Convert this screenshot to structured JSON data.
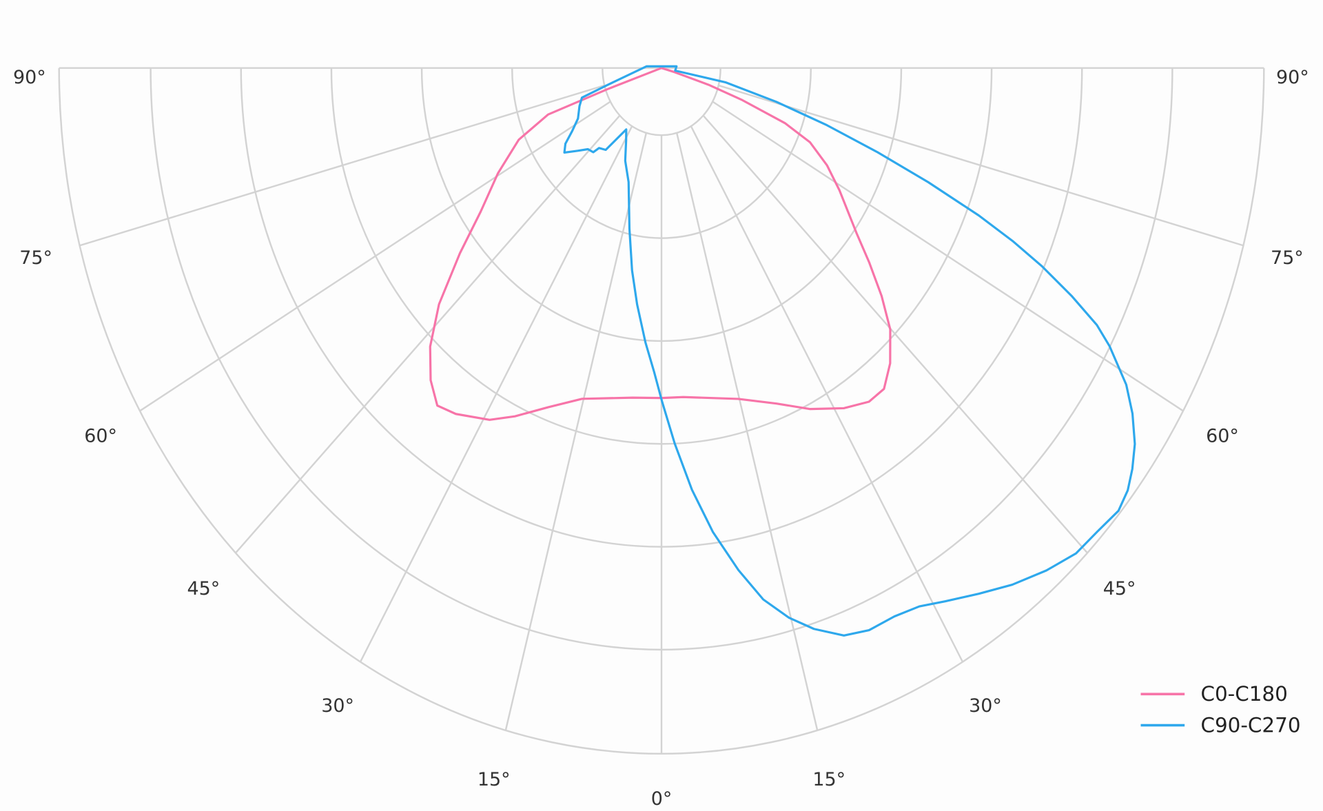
{
  "chart_data": {
    "type": "polar",
    "title": "",
    "angle_unit": "degrees",
    "angle_zero": "down",
    "angle_range": [
      -90,
      90
    ],
    "r_unit": "fraction of outer grid circle",
    "rlim": [
      0,
      1
    ],
    "radial_gridlines": [
      0.098,
      0.248,
      0.398,
      0.548,
      0.698,
      0.848,
      1.0
    ],
    "angular_gridlines": [
      -90,
      -75,
      -60,
      -45,
      -30,
      -15,
      0,
      15,
      30,
      45,
      60,
      75,
      90
    ],
    "angle_tick_labels": [
      {
        "angle": -90,
        "label": "90°"
      },
      {
        "angle": -75,
        "label": "75°"
      },
      {
        "angle": -60,
        "label": "60°"
      },
      {
        "angle": -45,
        "label": "45°"
      },
      {
        "angle": -30,
        "label": "30°"
      },
      {
        "angle": -15,
        "label": "15°"
      },
      {
        "angle": 0,
        "label": "0°"
      },
      {
        "angle": 15,
        "label": "15°"
      },
      {
        "angle": 30,
        "label": "30°"
      },
      {
        "angle": 45,
        "label": "45°"
      },
      {
        "angle": 60,
        "label": "60°"
      },
      {
        "angle": 75,
        "label": "75°"
      },
      {
        "angle": 90,
        "label": "90°"
      }
    ],
    "grid": true,
    "legend_position": "bottom-right",
    "series": [
      {
        "name": "C0-C180",
        "color": "#f774a8",
        "points": [
          [
            -90,
            0
          ],
          [
            -71,
            0.095
          ],
          [
            -70.2,
            0.2
          ],
          [
            -66.2,
            0.259
          ],
          [
            -60.5,
            0.312
          ],
          [
            -55.1,
            0.366
          ],
          [
            -51.1,
            0.43
          ],
          [
            -47,
            0.505
          ],
          [
            -43.4,
            0.559
          ],
          [
            -40.1,
            0.595
          ],
          [
            -37.1,
            0.617
          ],
          [
            -34.1,
            0.609
          ],
          [
            -29.1,
            0.587
          ],
          [
            -25.6,
            0.563
          ],
          [
            -20.8,
            0.529
          ],
          [
            -15.3,
            0.5
          ],
          [
            -5.7,
            0.483
          ],
          [
            0,
            0.481
          ],
          [
            4.3,
            0.481
          ],
          [
            14.8,
            0.499
          ],
          [
            21.3,
            0.525
          ],
          [
            26.4,
            0.555
          ],
          [
            31.4,
            0.581
          ],
          [
            35.3,
            0.596
          ],
          [
            38.3,
            0.596
          ],
          [
            41.4,
            0.574
          ],
          [
            44.9,
            0.538
          ],
          [
            47.7,
            0.494
          ],
          [
            50.6,
            0.446
          ],
          [
            53.4,
            0.403
          ],
          [
            58.9,
            0.345
          ],
          [
            62.7,
            0.309
          ],
          [
            66.3,
            0.269
          ],
          [
            68.6,
            0.22
          ],
          [
            70.8,
            0.142
          ],
          [
            72.6,
            0.082
          ],
          [
            74.5,
            0.023
          ],
          [
            90,
            0
          ]
        ]
      },
      {
        "name": "C90-C270",
        "color": "#2ea8ec",
        "points": [
          [
            -95.7,
            0.025
          ],
          [
            -74.6,
            0.093
          ],
          [
            -71.9,
            0.139
          ],
          [
            -67.8,
            0.147
          ],
          [
            -62,
            0.157
          ],
          [
            -58.1,
            0.175
          ],
          [
            -55.3,
            0.194
          ],
          [
            -52.6,
            0.203
          ],
          [
            -49,
            0.184
          ],
          [
            -45.9,
            0.17
          ],
          [
            -42.7,
            0.167
          ],
          [
            -41.6,
            0.156
          ],
          [
            -37.8,
            0.151
          ],
          [
            -35.9,
            0.129
          ],
          [
            -33.2,
            0.107
          ],
          [
            -29.3,
            0.12
          ],
          [
            -24,
            0.148
          ],
          [
            -18.2,
            0.175
          ],
          [
            -12.8,
            0.24
          ],
          [
            -9.4,
            0.299
          ],
          [
            -6.7,
            0.347
          ],
          [
            -3.8,
            0.401
          ],
          [
            -1.6,
            0.443
          ],
          [
            0.1,
            0.486
          ],
          [
            2.3,
            0.548
          ],
          [
            4.7,
            0.617
          ],
          [
            7.2,
            0.682
          ],
          [
            9.9,
            0.743
          ],
          [
            12.3,
            0.793
          ],
          [
            14.8,
            0.829
          ],
          [
            17.2,
            0.856
          ],
          [
            20.1,
            0.881
          ],
          [
            22.8,
            0.889
          ],
          [
            25.8,
            0.888
          ],
          [
            28.6,
            0.894
          ],
          [
            31.2,
            0.909
          ],
          [
            34.5,
            0.93
          ],
          [
            37.7,
            0.952
          ],
          [
            41.1,
            0.972
          ],
          [
            44.2,
            0.987
          ],
          [
            46.9,
            0.99
          ],
          [
            49.6,
            0.996
          ],
          [
            51.5,
            0.989
          ],
          [
            53.2,
            0.976
          ],
          [
            55.1,
            0.958
          ],
          [
            57.2,
            0.93
          ],
          [
            59.1,
            0.899
          ],
          [
            61.4,
            0.847
          ],
          [
            62.6,
            0.814
          ],
          [
            64,
            0.757
          ],
          [
            65.4,
            0.695
          ],
          [
            66.6,
            0.635
          ],
          [
            67.8,
            0.569
          ],
          [
            69.4,
            0.473
          ],
          [
            71.1,
            0.379
          ],
          [
            73.1,
            0.287
          ],
          [
            75.5,
            0.197
          ],
          [
            78.9,
            0.108
          ],
          [
            80.6,
            0.023
          ],
          [
            95.7,
            0.025
          ]
        ]
      }
    ]
  }
}
